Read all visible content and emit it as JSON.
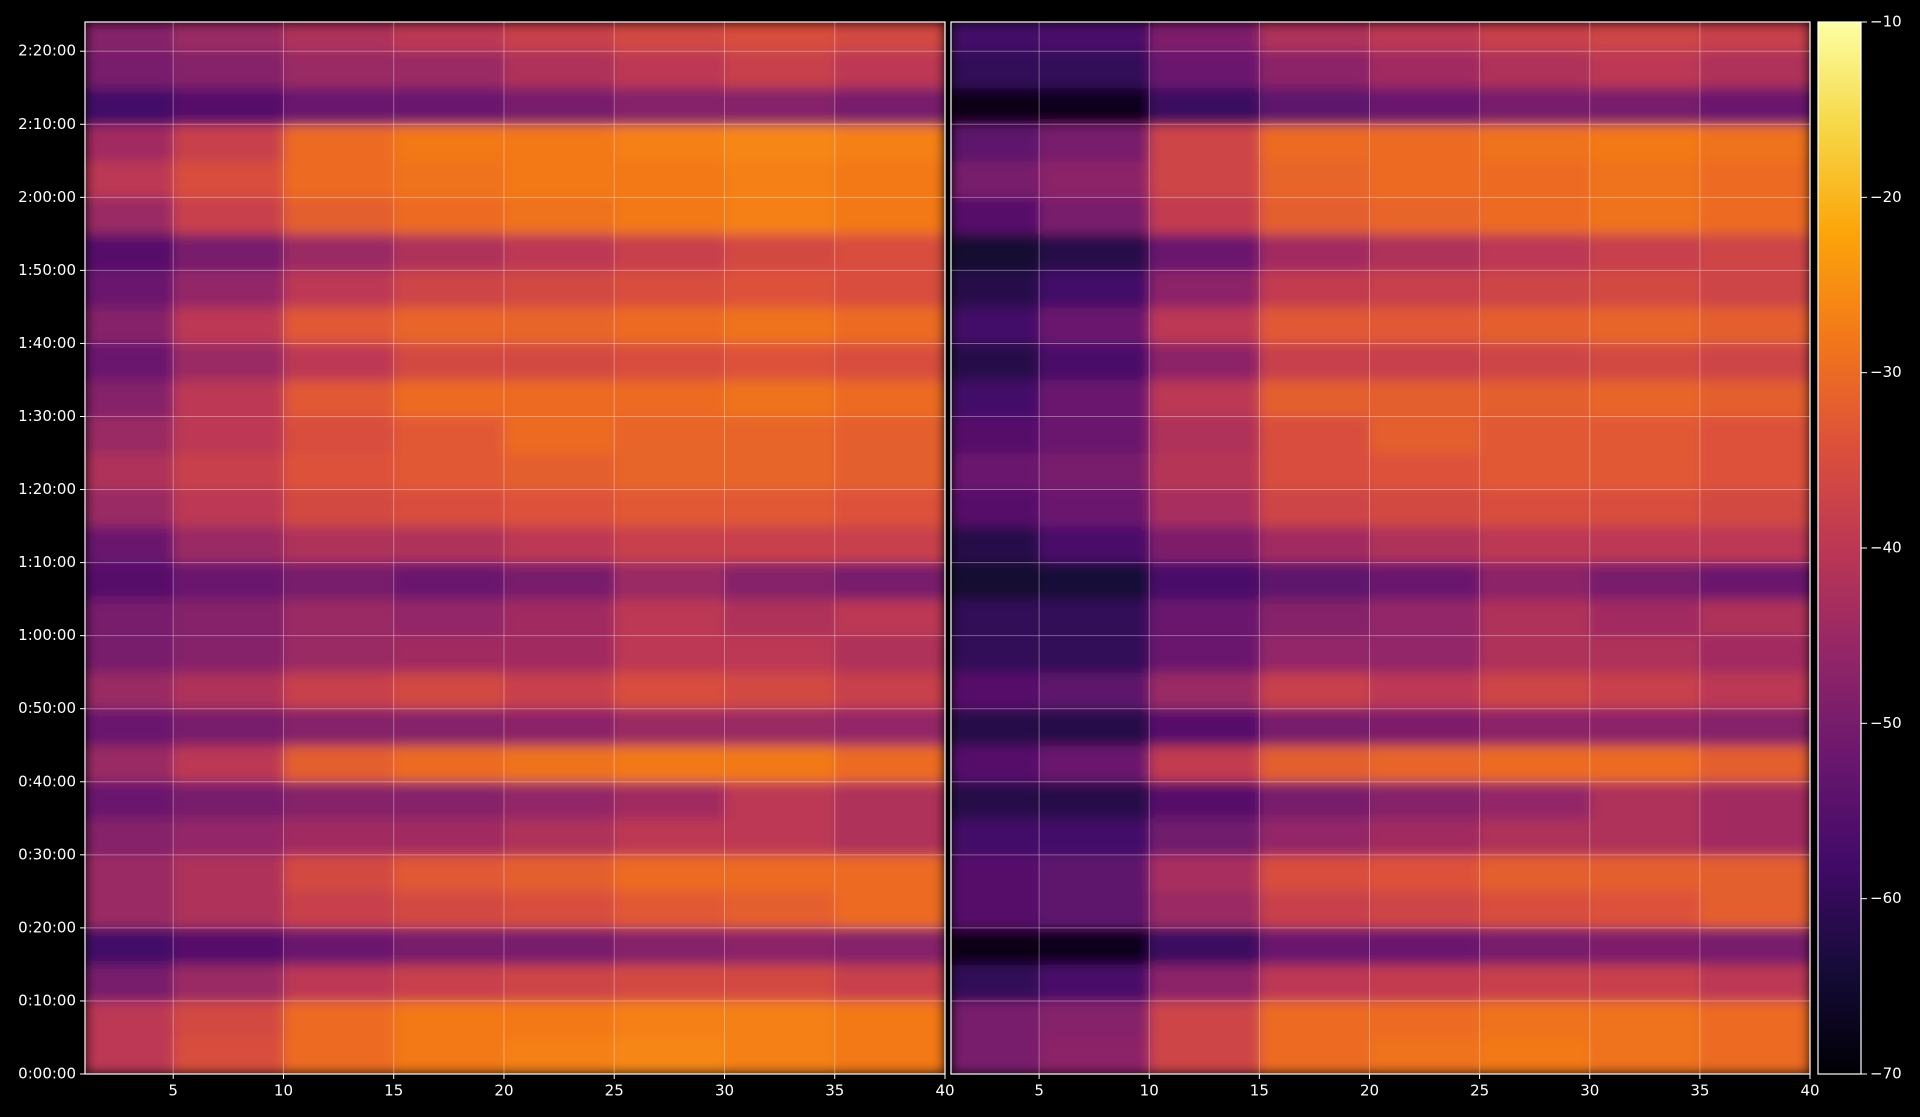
{
  "chart_data": [
    {
      "type": "heatmap",
      "xbins": [
        1,
        5,
        10,
        15,
        20,
        25,
        30,
        35,
        40
      ],
      "ybins": [
        0,
        300,
        600,
        900,
        1200,
        1500,
        1800,
        2100,
        2400,
        2700,
        3000,
        3300,
        3600,
        3900,
        4200,
        4500,
        4800,
        5100,
        5400,
        5700,
        6000,
        6300,
        6600,
        6900,
        7200,
        7500,
        7800,
        8100,
        8400,
        8640
      ],
      "values": [
        [
          -40,
          -35,
          -30,
          -28,
          -27,
          -26,
          -27,
          -28
        ],
        [
          -40,
          -36,
          -30,
          -28,
          -28,
          -27,
          -27,
          -28
        ],
        [
          -50,
          -45,
          -40,
          -38,
          -37,
          -36,
          -36,
          -38
        ],
        [
          -58,
          -55,
          -52,
          -50,
          -50,
          -48,
          -47,
          -48
        ],
        [
          -45,
          -42,
          -38,
          -36,
          -35,
          -33,
          -32,
          -30
        ],
        [
          -45,
          -42,
          -36,
          -33,
          -32,
          -30,
          -30,
          -30
        ],
        [
          -48,
          -46,
          -44,
          -44,
          -42,
          -40,
          -40,
          -42
        ],
        [
          -52,
          -50,
          -48,
          -48,
          -46,
          -44,
          -40,
          -42
        ],
        [
          -45,
          -40,
          -32,
          -30,
          -29,
          -28,
          -28,
          -30
        ],
        [
          -52,
          -50,
          -48,
          -48,
          -47,
          -45,
          -45,
          -46
        ],
        [
          -45,
          -42,
          -38,
          -36,
          -38,
          -35,
          -36,
          -38
        ],
        [
          -50,
          -48,
          -45,
          -44,
          -44,
          -40,
          -40,
          -42
        ],
        [
          -50,
          -48,
          -45,
          -46,
          -44,
          -40,
          -42,
          -40
        ],
        [
          -55,
          -52,
          -50,
          -52,
          -50,
          -45,
          -48,
          -50
        ],
        [
          -52,
          -45,
          -42,
          -42,
          -40,
          -38,
          -38,
          -38
        ],
        [
          -45,
          -40,
          -36,
          -35,
          -34,
          -33,
          -33,
          -34
        ],
        [
          -42,
          -38,
          -34,
          -33,
          -32,
          -31,
          -31,
          -32
        ],
        [
          -45,
          -40,
          -35,
          -33,
          -30,
          -31,
          -31,
          -32
        ],
        [
          -48,
          -40,
          -33,
          -30,
          -30,
          -30,
          -29,
          -30
        ],
        [
          -52,
          -45,
          -40,
          -36,
          -36,
          -35,
          -34,
          -35
        ],
        [
          -48,
          -40,
          -33,
          -31,
          -31,
          -30,
          -29,
          -30
        ],
        [
          -52,
          -46,
          -40,
          -37,
          -36,
          -35,
          -34,
          -35
        ],
        [
          -55,
          -50,
          -45,
          -42,
          -40,
          -38,
          -36,
          -35
        ],
        [
          -45,
          -38,
          -32,
          -30,
          -29,
          -28,
          -27,
          -28
        ],
        [
          -40,
          -35,
          -30,
          -29,
          -28,
          -28,
          -27,
          -28
        ],
        [
          -44,
          -38,
          -30,
          -28,
          -28,
          -27,
          -26,
          -27
        ],
        [
          -58,
          -55,
          -52,
          -52,
          -50,
          -48,
          -48,
          -50
        ],
        [
          -50,
          -48,
          -45,
          -45,
          -42,
          -40,
          -38,
          -40
        ],
        [
          -48,
          -45,
          -42,
          -40,
          -38,
          -36,
          -35,
          -36
        ]
      ],
      "xlim": [
        1,
        40
      ],
      "ylim": [
        0,
        8640
      ],
      "xticks": [
        5,
        10,
        15,
        20,
        25,
        30,
        35,
        40
      ],
      "yticks": [
        {
          "value": 0,
          "label": "0:00:00"
        },
        {
          "value": 600,
          "label": "0:10:00"
        },
        {
          "value": 1200,
          "label": "0:20:00"
        },
        {
          "value": 1800,
          "label": "0:30:00"
        },
        {
          "value": 2400,
          "label": "0:40:00"
        },
        {
          "value": 3000,
          "label": "0:50:00"
        },
        {
          "value": 3600,
          "label": "1:00:00"
        },
        {
          "value": 4200,
          "label": "1:10:00"
        },
        {
          "value": 4800,
          "label": "1:20:00"
        },
        {
          "value": 5400,
          "label": "1:30:00"
        },
        {
          "value": 6000,
          "label": "1:40:00"
        },
        {
          "value": 6600,
          "label": "1:50:00"
        },
        {
          "value": 7200,
          "label": "2:00:00"
        },
        {
          "value": 7800,
          "label": "2:10:00"
        },
        {
          "value": 8400,
          "label": "2:20:00"
        }
      ],
      "grid": true
    },
    {
      "type": "heatmap",
      "xbins": [
        1,
        5,
        10,
        15,
        20,
        25,
        30,
        35,
        40
      ],
      "ybins": [
        0,
        300,
        600,
        900,
        1200,
        1500,
        1800,
        2100,
        2400,
        2700,
        3000,
        3300,
        3600,
        3900,
        4200,
        4500,
        4800,
        5100,
        5400,
        5700,
        6000,
        6300,
        6600,
        6900,
        7200,
        7500,
        7800,
        8100,
        8400,
        8640
      ],
      "values": [
        [
          -50,
          -47,
          -37,
          -30,
          -29,
          -28,
          -29,
          -30
        ],
        [
          -50,
          -48,
          -37,
          -30,
          -30,
          -29,
          -29,
          -30
        ],
        [
          -60,
          -57,
          -47,
          -40,
          -39,
          -38,
          -38,
          -40
        ],
        [
          -68,
          -67,
          -59,
          -52,
          -52,
          -50,
          -49,
          -50
        ],
        [
          -55,
          -54,
          -45,
          -38,
          -37,
          -35,
          -34,
          -32
        ],
        [
          -55,
          -54,
          -43,
          -35,
          -34,
          -32,
          -32,
          -32
        ],
        [
          -58,
          -58,
          -51,
          -46,
          -44,
          -42,
          -42,
          -44
        ],
        [
          -62,
          -62,
          -55,
          -50,
          -48,
          -46,
          -42,
          -44
        ],
        [
          -55,
          -52,
          -39,
          -32,
          -31,
          -30,
          -30,
          -32
        ],
        [
          -62,
          -62,
          -55,
          -50,
          -49,
          -47,
          -47,
          -48
        ],
        [
          -55,
          -54,
          -45,
          -38,
          -40,
          -37,
          -38,
          -40
        ],
        [
          -60,
          -60,
          -52,
          -46,
          -46,
          -42,
          -42,
          -44
        ],
        [
          -60,
          -60,
          -52,
          -48,
          -46,
          -42,
          -44,
          -42
        ],
        [
          -65,
          -64,
          -57,
          -54,
          -52,
          -47,
          -50,
          -52
        ],
        [
          -62,
          -57,
          -49,
          -44,
          -42,
          -40,
          -40,
          -40
        ],
        [
          -55,
          -52,
          -43,
          -37,
          -36,
          -35,
          -35,
          -36
        ],
        [
          -52,
          -50,
          -41,
          -35,
          -34,
          -33,
          -33,
          -34
        ],
        [
          -55,
          -52,
          -42,
          -35,
          -32,
          -33,
          -33,
          -34
        ],
        [
          -58,
          -52,
          -40,
          -32,
          -32,
          -32,
          -31,
          -32
        ],
        [
          -62,
          -57,
          -47,
          -38,
          -38,
          -37,
          -36,
          -37
        ],
        [
          -58,
          -52,
          -40,
          -33,
          -33,
          -32,
          -31,
          -32
        ],
        [
          -62,
          -58,
          -47,
          -39,
          -38,
          -37,
          -36,
          -37
        ],
        [
          -65,
          -62,
          -52,
          -44,
          -42,
          -40,
          -38,
          -37
        ],
        [
          -55,
          -50,
          -39,
          -32,
          -31,
          -30,
          -29,
          -30
        ],
        [
          -50,
          -47,
          -37,
          -31,
          -30,
          -30,
          -29,
          -30
        ],
        [
          -54,
          -50,
          -37,
          -30,
          -30,
          -29,
          -28,
          -29
        ],
        [
          -68,
          -67,
          -59,
          -54,
          -52,
          -50,
          -50,
          -52
        ],
        [
          -60,
          -60,
          -52,
          -47,
          -44,
          -42,
          -40,
          -42
        ],
        [
          -58,
          -57,
          -49,
          -42,
          -40,
          -38,
          -37,
          -38
        ]
      ],
      "xlim": [
        1,
        40
      ],
      "ylim": [
        0,
        8640
      ],
      "xticks": [
        5,
        10,
        15,
        20,
        25,
        30,
        35,
        40
      ],
      "grid": true
    }
  ],
  "colorbar": {
    "colormap": "inferno",
    "lim": [
      -70,
      -10
    ],
    "ticks": [
      {
        "value": -70,
        "label": "−70"
      },
      {
        "value": -60,
        "label": "−60"
      },
      {
        "value": -50,
        "label": "−50"
      },
      {
        "value": -40,
        "label": "−40"
      },
      {
        "value": -30,
        "label": "−30"
      },
      {
        "value": -20,
        "label": "−20"
      },
      {
        "value": -10,
        "label": "−10"
      }
    ]
  }
}
